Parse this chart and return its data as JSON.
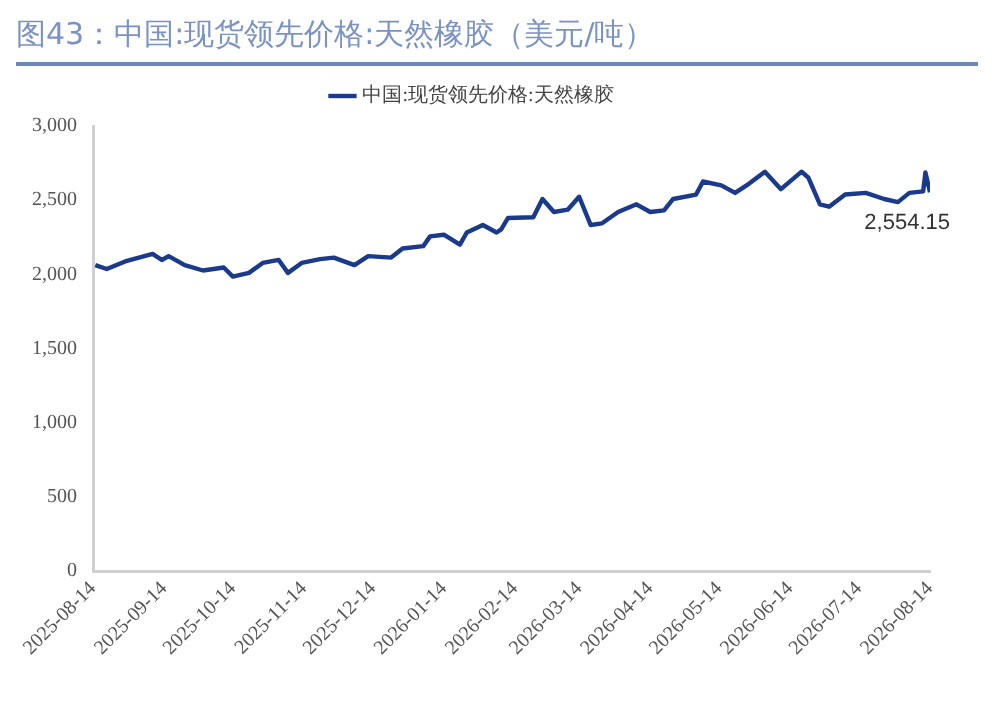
{
  "chart_data": {
    "type": "line",
    "title": "图43：中国:现货领先价格:天然橡胶（美元/吨）",
    "x": [
      "2025-08-15",
      "2025-08-20",
      "2025-08-28",
      "2025-09-09",
      "2025-09-13",
      "2025-09-16",
      "2025-09-23",
      "2025-10-01",
      "2025-10-10",
      "2025-10-14",
      "2025-10-21",
      "2025-10-27",
      "2025-11-03",
      "2025-11-07",
      "2025-11-13",
      "2025-11-21",
      "2025-11-27",
      "2025-12-06",
      "2025-12-12",
      "2025-12-22",
      "2025-12-27",
      "2026-01-05",
      "2026-01-08",
      "2026-01-14",
      "2026-01-21",
      "2026-01-24",
      "2026-01-31",
      "2026-02-06",
      "2026-02-08",
      "2026-02-11",
      "2026-02-22",
      "2026-02-26",
      "2026-03-03",
      "2026-03-09",
      "2026-03-14",
      "2026-03-19",
      "2026-03-24",
      "2026-03-31",
      "2026-04-08",
      "2026-04-14",
      "2026-04-20",
      "2026-04-24",
      "2026-05-04",
      "2026-05-07",
      "2026-05-15",
      "2026-05-21",
      "2026-05-27",
      "2026-06-03",
      "2026-06-10",
      "2026-06-19",
      "2026-06-22",
      "2026-06-27",
      "2026-07-01",
      "2026-07-08",
      "2026-07-17",
      "2026-07-25",
      "2026-07-31",
      "2026-08-05",
      "2026-08-11",
      "2026-08-12",
      "2026-08-14"
    ],
    "series": [
      {
        "name": "中国:现货领先价格:天然橡胶",
        "color": "#1b3a8c",
        "values": [
          2062,
          2036,
          2087,
          2138,
          2097,
          2123,
          2062,
          2026,
          2046,
          1985,
          2010,
          2077,
          2097,
          2010,
          2077,
          2103,
          2113,
          2062,
          2123,
          2113,
          2174,
          2190,
          2256,
          2267,
          2200,
          2282,
          2333,
          2282,
          2303,
          2380,
          2385,
          2508,
          2420,
          2436,
          2523,
          2333,
          2344,
          2420,
          2472,
          2420,
          2431,
          2508,
          2538,
          2626,
          2600,
          2549,
          2610,
          2692,
          2574,
          2692,
          2651,
          2472,
          2456,
          2538,
          2549,
          2508,
          2487,
          2549,
          2559,
          2687,
          2554.15
        ]
      }
    ],
    "xlim": [
      "2025-08-14",
      "2026-08-14"
    ],
    "xticks": [
      "2025-08-14",
      "2025-09-14",
      "2025-10-14",
      "2025-11-14",
      "2025-12-14",
      "2026-01-14",
      "2026-02-14",
      "2026-03-14",
      "2026-04-14",
      "2026-05-14",
      "2026-06-14",
      "2026-07-14",
      "2026-08-14"
    ],
    "ylim": [
      0,
      3000
    ],
    "yticks": [
      0,
      500,
      {
        "value": 1000,
        "label": "1,000"
      },
      {
        "value": 1500,
        "label": "1,500"
      },
      {
        "value": 2000,
        "label": "2,000"
      },
      {
        "value": 2500,
        "label": "2,500"
      },
      {
        "value": 3000,
        "label": "3,000"
      }
    ],
    "annotations": [
      {
        "text": "2,554.15",
        "x": "2026-08-14",
        "y": 2554.15
      }
    ],
    "legend": "top",
    "grid": false,
    "marker": "none",
    "line_style": "solid"
  }
}
